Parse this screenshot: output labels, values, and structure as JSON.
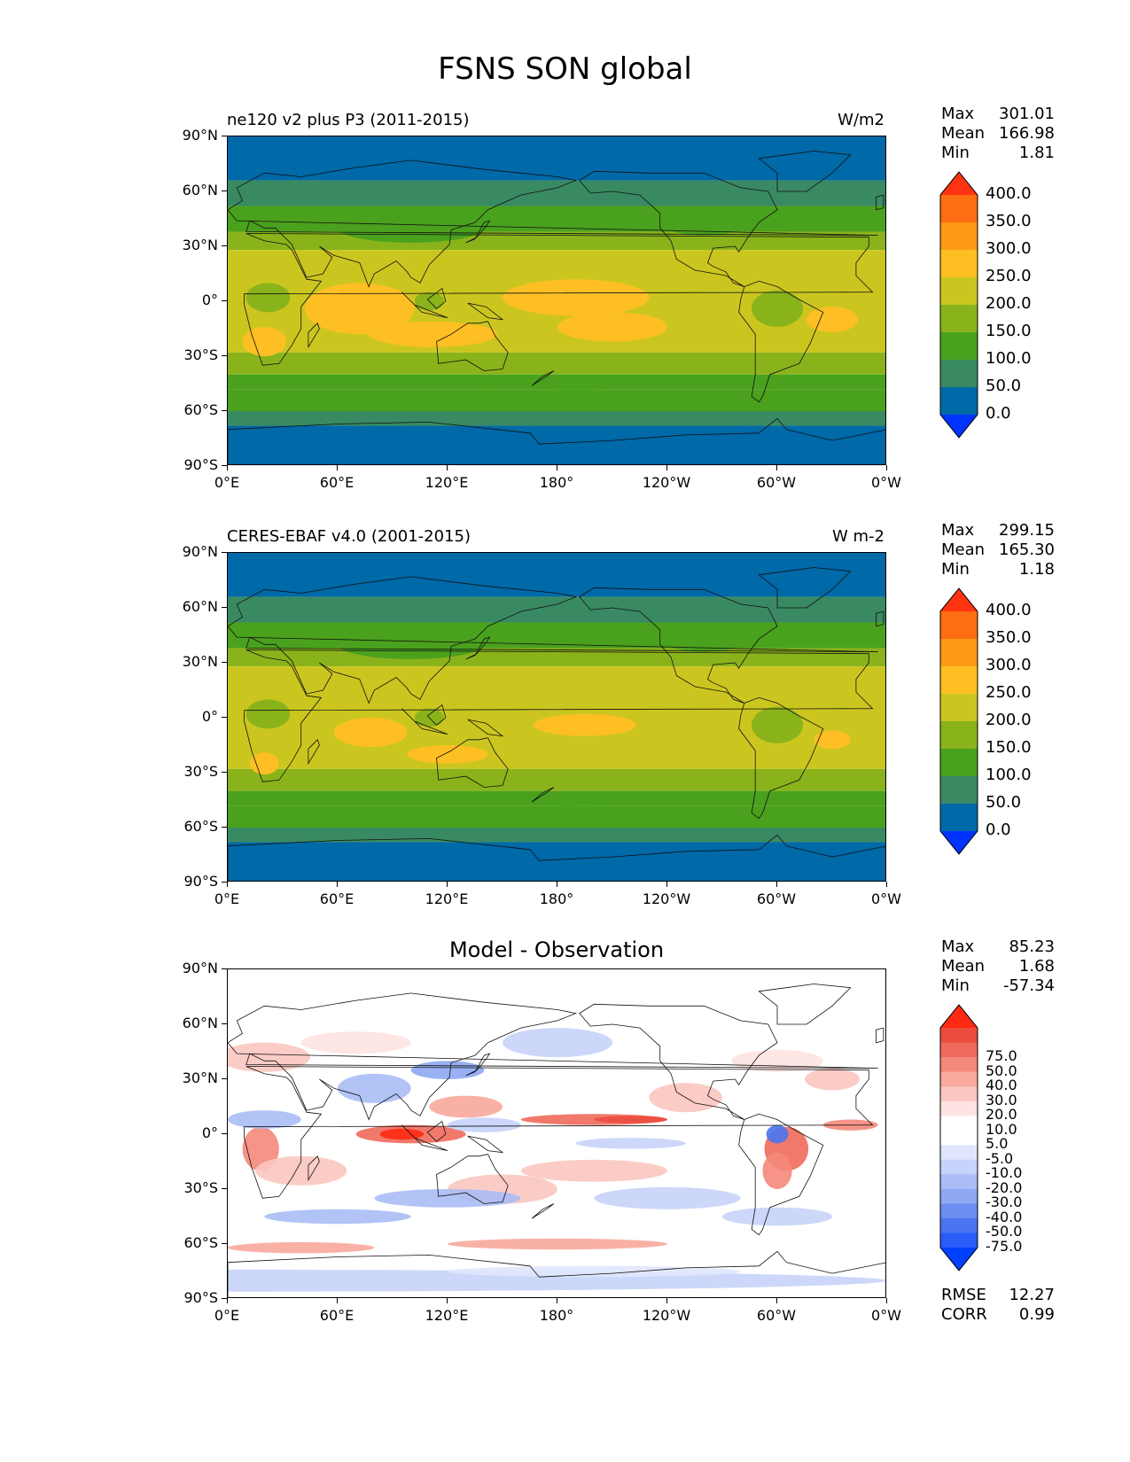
{
  "title": "FSNS SON global",
  "panels": [
    {
      "title": "ne120 v2 plus P3 (2011-2015)",
      "units": "W/m2",
      "center_title": "",
      "stats": [
        {
          "k": "Max",
          "v": "301.01"
        },
        {
          "k": "Mean",
          "v": "166.98"
        },
        {
          "k": "Min",
          "v": "1.81"
        }
      ],
      "colorbar": {
        "colors": [
          "#0033ff",
          "#0069a8",
          "#398a63",
          "#4aa11d",
          "#8ab31b",
          "#cbc61f",
          "#fdbf23",
          "#fd9a15",
          "#fd6d11",
          "#ff3311"
        ],
        "labels": [
          "0.0",
          "50.0",
          "100.0",
          "150.0",
          "200.0",
          "250.0",
          "300.0",
          "350.0",
          "400.0"
        ]
      }
    },
    {
      "title": "CERES-EBAF v4.0 (2001-2015)",
      "units": "W m-2",
      "center_title": "",
      "stats": [
        {
          "k": "Max",
          "v": "299.15"
        },
        {
          "k": "Mean",
          "v": "165.30"
        },
        {
          "k": "Min",
          "v": "1.18"
        }
      ],
      "colorbar": {
        "colors": [
          "#0033ff",
          "#0069a8",
          "#398a63",
          "#4aa11d",
          "#8ab31b",
          "#cbc61f",
          "#fdbf23",
          "#fd9a15",
          "#fd6d11",
          "#ff3311"
        ],
        "labels": [
          "0.0",
          "50.0",
          "100.0",
          "150.0",
          "200.0",
          "250.0",
          "300.0",
          "350.0",
          "400.0"
        ]
      }
    },
    {
      "title": "",
      "units": "",
      "center_title": "Model - Observation",
      "stats": [
        {
          "k": "Max",
          "v": "85.23"
        },
        {
          "k": "Mean",
          "v": "1.68"
        },
        {
          "k": "Min",
          "v": "-57.34"
        }
      ],
      "colorbar": {
        "colors": [
          "#0040ff",
          "#2a5cf7",
          "#4a74f0",
          "#6d8ef0",
          "#8ea8f2",
          "#aabdf5",
          "#c6d3fa",
          "#e0e7fc",
          "#ffffff",
          "#ffffff",
          "#fde3e1",
          "#fbc6c0",
          "#f8a89c",
          "#f4887a",
          "#ef6a5b",
          "#ea4d3e",
          "#ff2a11"
        ],
        "labels": [
          "-75.0",
          "-50.0",
          "-40.0",
          "-30.0",
          "-20.0",
          "-10.0",
          "-5.0",
          "5.0",
          "10.0",
          "20.0",
          "30.0",
          "40.0",
          "50.0",
          "75.0"
        ]
      },
      "footer": [
        {
          "k": "RMSE",
          "v": "12.27"
        },
        {
          "k": "CORR",
          "v": "0.99"
        }
      ]
    }
  ],
  "axes": {
    "lat_labels": [
      "90°N",
      "60°N",
      "30°N",
      "0°",
      "30°S",
      "60°S",
      "90°S"
    ],
    "lon_labels": [
      "0°E",
      "60°E",
      "120°E",
      "180°",
      "120°W",
      "60°W",
      "0°W"
    ]
  }
}
